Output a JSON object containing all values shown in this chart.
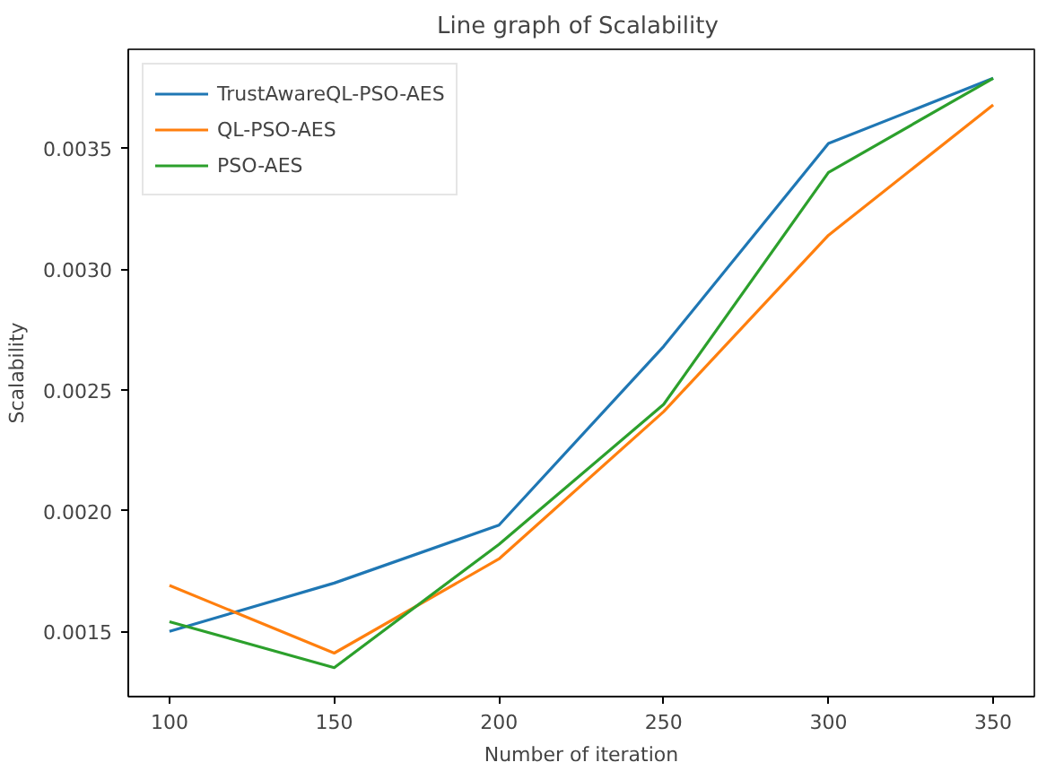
{
  "chart_data": {
    "type": "line",
    "title": "Line graph of  Scalability",
    "xlabel": "Number of iteration",
    "ylabel": "Scalability",
    "x": [
      100,
      150,
      200,
      250,
      300,
      350
    ],
    "series": [
      {
        "name": "TrustAwareQL-PSO-AES",
        "color": "#1f77b4",
        "values": [
          0.0015,
          0.0017,
          0.00194,
          0.00268,
          0.00352,
          0.00379
        ]
      },
      {
        "name": "QL-PSO-AES",
        "color": "#ff7f0e",
        "values": [
          0.00169,
          0.00141,
          0.0018,
          0.00241,
          0.00314,
          0.00368
        ]
      },
      {
        "name": "PSO-AES",
        "color": "#2ca02c",
        "values": [
          0.00154,
          0.00135,
          0.00186,
          0.00244,
          0.0034,
          0.00379
        ]
      }
    ],
    "xlim": [
      87.5,
      362.5
    ],
    "ylim": [
      0.00123,
      0.00391
    ],
    "xticks": [
      100,
      150,
      200,
      250,
      300,
      350
    ],
    "yticks": [
      {
        "value": 0.0015,
        "label": "0.0015"
      },
      {
        "value": 0.002,
        "label": "0.0020"
      },
      {
        "value": 0.0025,
        "label": "0.0025"
      },
      {
        "value": 0.003,
        "label": "0.0030"
      },
      {
        "value": 0.0035,
        "label": "0.0035"
      }
    ],
    "grid": false,
    "legend": "top left",
    "line_style": "solid",
    "marker": "none"
  }
}
